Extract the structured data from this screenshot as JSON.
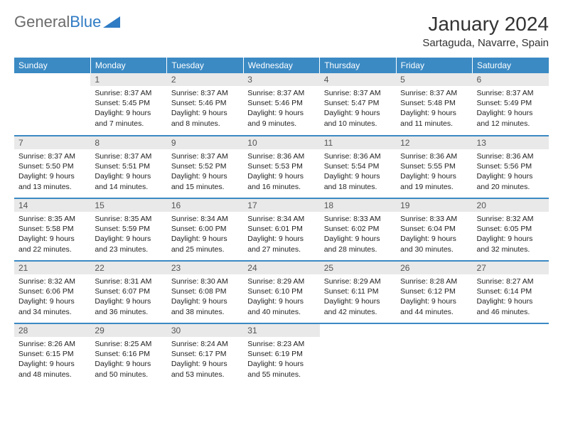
{
  "logo": {
    "text1": "General",
    "text2": "Blue"
  },
  "title": "January 2024",
  "location": "Sartaguda, Navarre, Spain",
  "colors": {
    "header_bg": "#3b8ac4",
    "header_text": "#ffffff",
    "daynum_bg": "#e9e9e9",
    "daynum_text": "#555555",
    "body_text": "#222222",
    "logo_gray": "#6b6b6b",
    "logo_blue": "#2f7bc4",
    "border": "#3b8ac4",
    "page_bg": "#ffffff"
  },
  "typography": {
    "title_fontsize": 28,
    "location_fontsize": 15,
    "header_fontsize": 12,
    "daynum_fontsize": 12,
    "body_fontsize": 10.5
  },
  "day_headers": [
    "Sunday",
    "Monday",
    "Tuesday",
    "Wednesday",
    "Thursday",
    "Friday",
    "Saturday"
  ],
  "weeks": [
    [
      null,
      {
        "n": "1",
        "sr": "8:37 AM",
        "ss": "5:45 PM",
        "dl": "9 hours and 7 minutes."
      },
      {
        "n": "2",
        "sr": "8:37 AM",
        "ss": "5:46 PM",
        "dl": "9 hours and 8 minutes."
      },
      {
        "n": "3",
        "sr": "8:37 AM",
        "ss": "5:46 PM",
        "dl": "9 hours and 9 minutes."
      },
      {
        "n": "4",
        "sr": "8:37 AM",
        "ss": "5:47 PM",
        "dl": "9 hours and 10 minutes."
      },
      {
        "n": "5",
        "sr": "8:37 AM",
        "ss": "5:48 PM",
        "dl": "9 hours and 11 minutes."
      },
      {
        "n": "6",
        "sr": "8:37 AM",
        "ss": "5:49 PM",
        "dl": "9 hours and 12 minutes."
      }
    ],
    [
      {
        "n": "7",
        "sr": "8:37 AM",
        "ss": "5:50 PM",
        "dl": "9 hours and 13 minutes."
      },
      {
        "n": "8",
        "sr": "8:37 AM",
        "ss": "5:51 PM",
        "dl": "9 hours and 14 minutes."
      },
      {
        "n": "9",
        "sr": "8:37 AM",
        "ss": "5:52 PM",
        "dl": "9 hours and 15 minutes."
      },
      {
        "n": "10",
        "sr": "8:36 AM",
        "ss": "5:53 PM",
        "dl": "9 hours and 16 minutes."
      },
      {
        "n": "11",
        "sr": "8:36 AM",
        "ss": "5:54 PM",
        "dl": "9 hours and 18 minutes."
      },
      {
        "n": "12",
        "sr": "8:36 AM",
        "ss": "5:55 PM",
        "dl": "9 hours and 19 minutes."
      },
      {
        "n": "13",
        "sr": "8:36 AM",
        "ss": "5:56 PM",
        "dl": "9 hours and 20 minutes."
      }
    ],
    [
      {
        "n": "14",
        "sr": "8:35 AM",
        "ss": "5:58 PM",
        "dl": "9 hours and 22 minutes."
      },
      {
        "n": "15",
        "sr": "8:35 AM",
        "ss": "5:59 PM",
        "dl": "9 hours and 23 minutes."
      },
      {
        "n": "16",
        "sr": "8:34 AM",
        "ss": "6:00 PM",
        "dl": "9 hours and 25 minutes."
      },
      {
        "n": "17",
        "sr": "8:34 AM",
        "ss": "6:01 PM",
        "dl": "9 hours and 27 minutes."
      },
      {
        "n": "18",
        "sr": "8:33 AM",
        "ss": "6:02 PM",
        "dl": "9 hours and 28 minutes."
      },
      {
        "n": "19",
        "sr": "8:33 AM",
        "ss": "6:04 PM",
        "dl": "9 hours and 30 minutes."
      },
      {
        "n": "20",
        "sr": "8:32 AM",
        "ss": "6:05 PM",
        "dl": "9 hours and 32 minutes."
      }
    ],
    [
      {
        "n": "21",
        "sr": "8:32 AM",
        "ss": "6:06 PM",
        "dl": "9 hours and 34 minutes."
      },
      {
        "n": "22",
        "sr": "8:31 AM",
        "ss": "6:07 PM",
        "dl": "9 hours and 36 minutes."
      },
      {
        "n": "23",
        "sr": "8:30 AM",
        "ss": "6:08 PM",
        "dl": "9 hours and 38 minutes."
      },
      {
        "n": "24",
        "sr": "8:29 AM",
        "ss": "6:10 PM",
        "dl": "9 hours and 40 minutes."
      },
      {
        "n": "25",
        "sr": "8:29 AM",
        "ss": "6:11 PM",
        "dl": "9 hours and 42 minutes."
      },
      {
        "n": "26",
        "sr": "8:28 AM",
        "ss": "6:12 PM",
        "dl": "9 hours and 44 minutes."
      },
      {
        "n": "27",
        "sr": "8:27 AM",
        "ss": "6:14 PM",
        "dl": "9 hours and 46 minutes."
      }
    ],
    [
      {
        "n": "28",
        "sr": "8:26 AM",
        "ss": "6:15 PM",
        "dl": "9 hours and 48 minutes."
      },
      {
        "n": "29",
        "sr": "8:25 AM",
        "ss": "6:16 PM",
        "dl": "9 hours and 50 minutes."
      },
      {
        "n": "30",
        "sr": "8:24 AM",
        "ss": "6:17 PM",
        "dl": "9 hours and 53 minutes."
      },
      {
        "n": "31",
        "sr": "8:23 AM",
        "ss": "6:19 PM",
        "dl": "9 hours and 55 minutes."
      },
      null,
      null,
      null
    ]
  ],
  "labels": {
    "sunrise": "Sunrise:",
    "sunset": "Sunset:",
    "daylight": "Daylight:"
  }
}
